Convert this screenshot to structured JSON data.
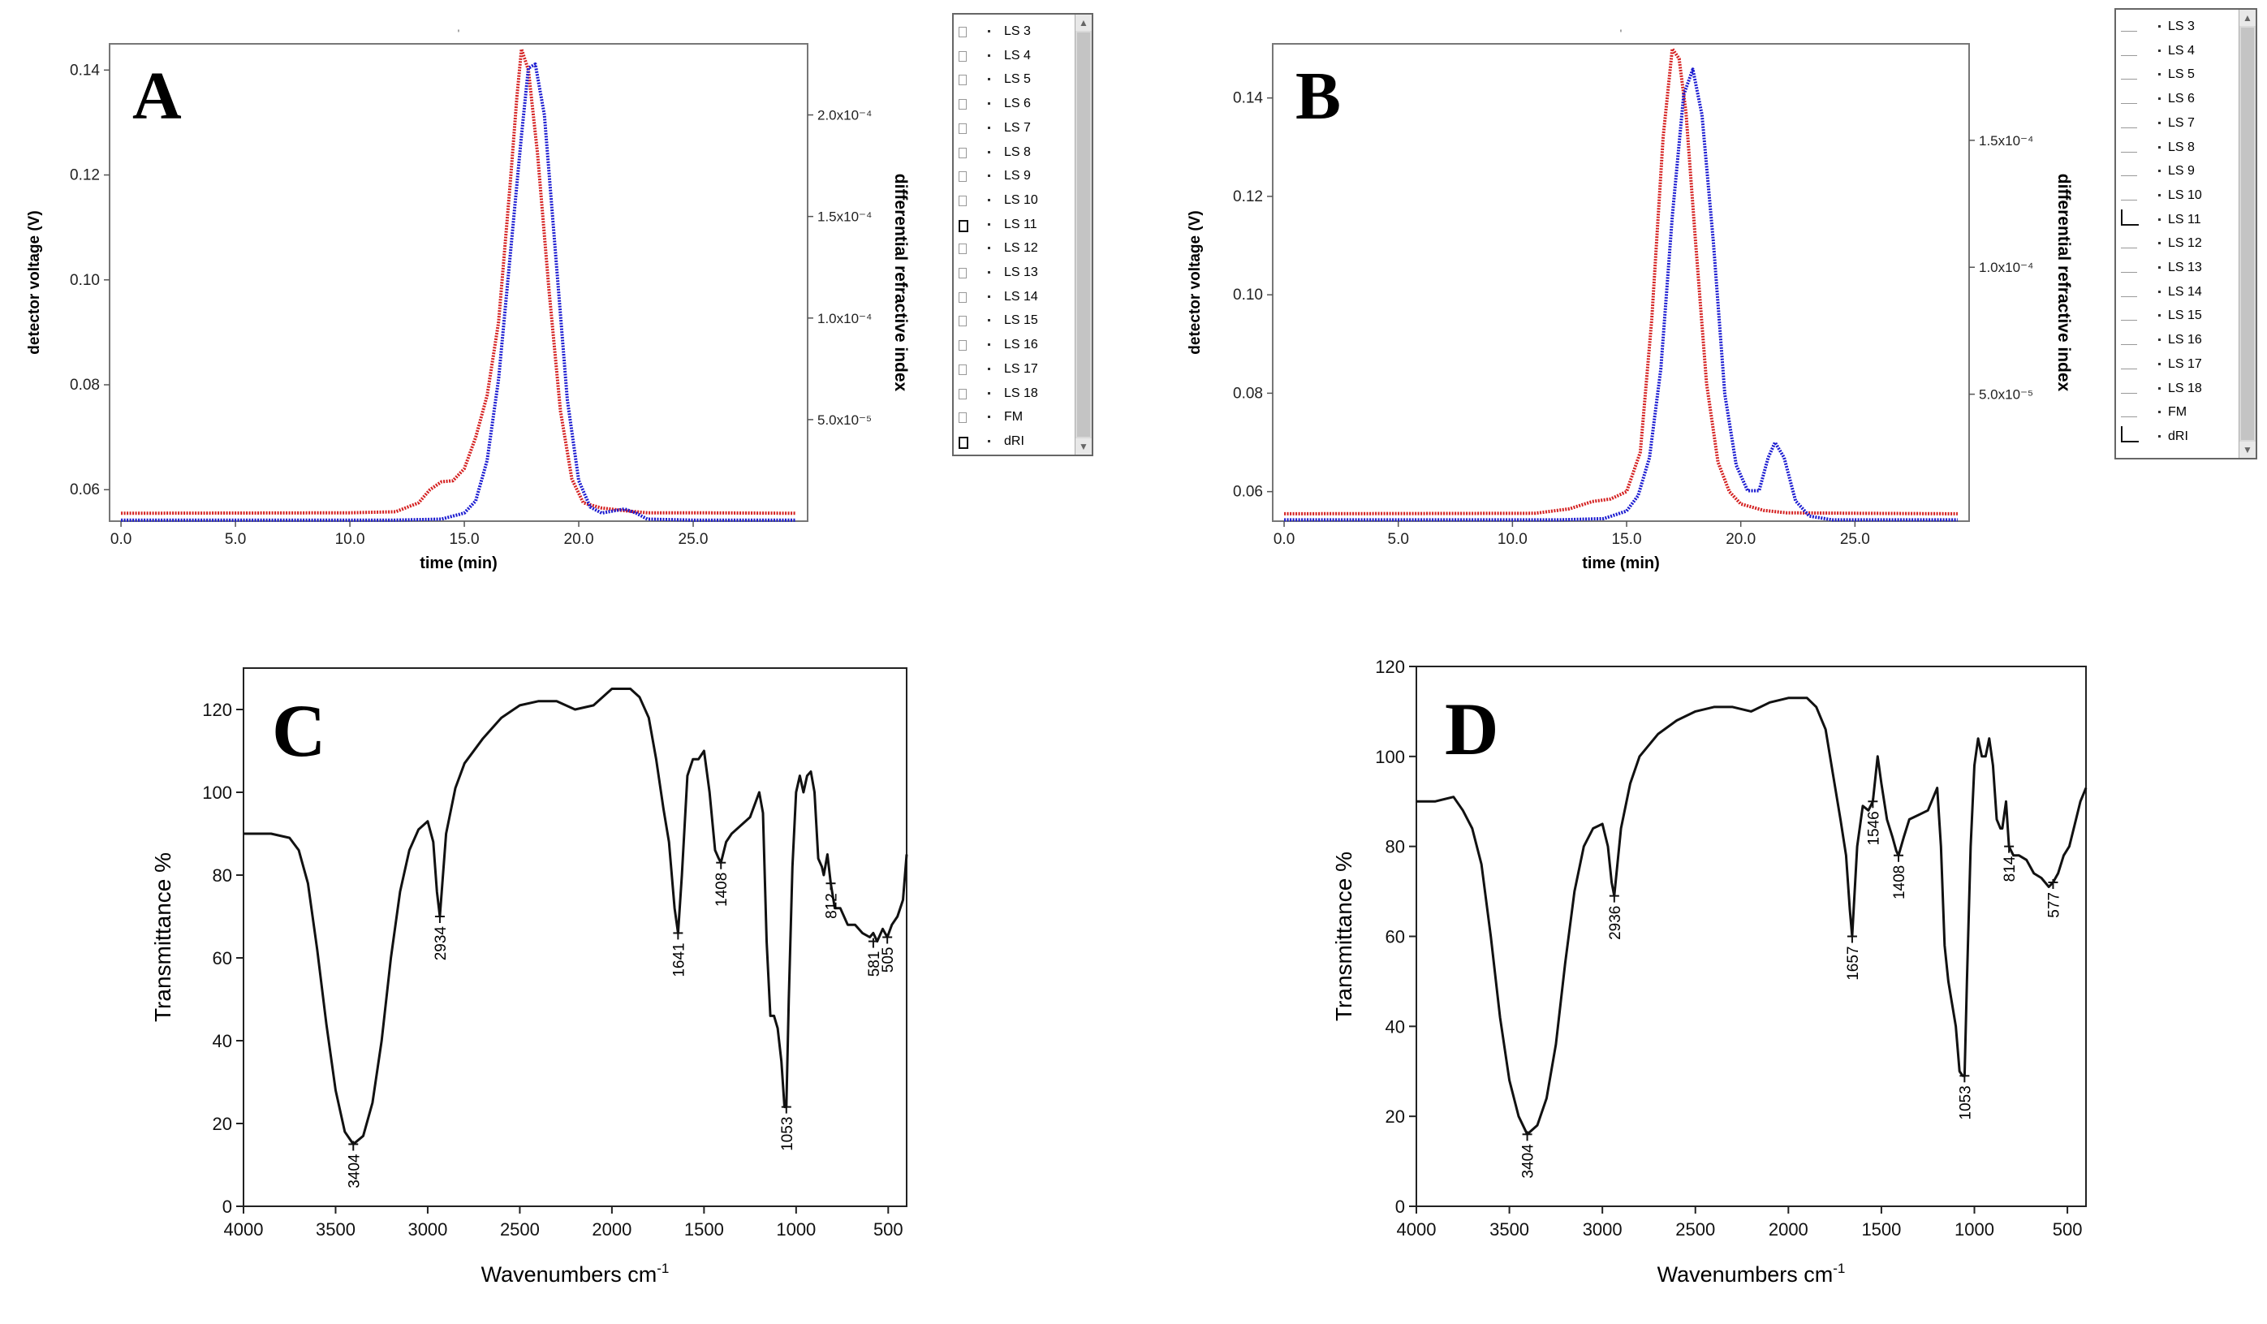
{
  "chart_data": [
    {
      "id": "A",
      "type": "line",
      "panel_letter": "A",
      "title_mark": "'",
      "xlabel": "time (min)",
      "ylabel": "detector voltage (V)",
      "y2label": "differential refractive index",
      "xlim": [
        -0.5,
        30
      ],
      "ylim": [
        0.054,
        0.145
      ],
      "y2lim": [
        0,
        0.000235
      ],
      "x_ticks": [
        "0.0",
        "5.0",
        "10.0",
        "15.0",
        "20.0",
        "25.0"
      ],
      "x_tick_values": [
        0,
        5,
        10,
        15,
        20,
        25
      ],
      "y_ticks": [
        "0.06",
        "0.08",
        "0.10",
        "0.12",
        "0.14"
      ],
      "y_tick_values": [
        0.06,
        0.08,
        0.1,
        0.12,
        0.14
      ],
      "y2_ticks": [
        "5.0x10⁻⁵",
        "1.0x10⁻⁴",
        "1.5x10⁻⁴",
        "2.0x10⁻⁴"
      ],
      "y2_tick_values": [
        5e-05,
        0.0001,
        0.00015,
        0.0002
      ],
      "series": [
        {
          "name": "LS 11",
          "axis": "left",
          "color": "#d42020",
          "x": [
            0,
            10,
            12,
            13,
            13.5,
            14,
            14.5,
            15,
            15.5,
            16,
            16.5,
            17,
            17.3,
            17.5,
            17.8,
            18.2,
            18.7,
            19.2,
            19.7,
            20.2,
            21,
            22,
            23,
            25,
            29.5
          ],
          "y": [
            0.0555,
            0.0556,
            0.0558,
            0.0575,
            0.06,
            0.0615,
            0.0617,
            0.064,
            0.07,
            0.078,
            0.092,
            0.118,
            0.135,
            0.144,
            0.14,
            0.124,
            0.098,
            0.075,
            0.062,
            0.0575,
            0.0565,
            0.056,
            0.0556,
            0.0556,
            0.0555
          ]
        },
        {
          "name": "dRI",
          "axis": "right",
          "color": "#1a1ad0",
          "x": [
            0,
            12,
            14,
            15,
            15.5,
            16,
            16.5,
            17,
            17.5,
            17.8,
            18.1,
            18.5,
            19,
            19.5,
            20,
            20.5,
            21,
            21.5,
            22,
            22.5,
            23,
            25,
            29.5
          ],
          "y": [
            5e-07,
            5e-07,
            1e-06,
            4e-06,
            1e-05,
            3e-05,
            7e-05,
            0.00013,
            0.00019,
            0.000223,
            0.000225,
            0.0002,
            0.00013,
            6e-05,
            2e-05,
            7e-06,
            4e-06,
            5e-06,
            6e-06,
            4e-06,
            1e-06,
            5e-07,
            5e-07
          ]
        }
      ],
      "legend": [
        {
          "label": "LS  3",
          "checked": false
        },
        {
          "label": "LS  4",
          "checked": false
        },
        {
          "label": "LS  5",
          "checked": false
        },
        {
          "label": "LS  6",
          "checked": false
        },
        {
          "label": "LS  7",
          "checked": false
        },
        {
          "label": "LS  8",
          "checked": false
        },
        {
          "label": "LS  9",
          "checked": false
        },
        {
          "label": "LS  10",
          "checked": false
        },
        {
          "label": "LS  11",
          "checked": true
        },
        {
          "label": "LS  12",
          "checked": false
        },
        {
          "label": "LS  13",
          "checked": false
        },
        {
          "label": "LS  14",
          "checked": false
        },
        {
          "label": "LS  15",
          "checked": false
        },
        {
          "label": "LS  16",
          "checked": false
        },
        {
          "label": "LS  17",
          "checked": false
        },
        {
          "label": "LS  18",
          "checked": false
        },
        {
          "label": "FM",
          "checked": false
        },
        {
          "label": "dRI",
          "checked": true
        }
      ]
    },
    {
      "id": "B",
      "type": "line",
      "panel_letter": "B",
      "title_mark": "'",
      "xlabel": "time (min)",
      "ylabel": "detector voltage (V)",
      "y2label": "differential refractive index",
      "xlim": [
        -0.5,
        30
      ],
      "ylim": [
        0.054,
        0.151
      ],
      "y2lim": [
        0,
        0.000188
      ],
      "x_ticks": [
        "0.0",
        "5.0",
        "10.0",
        "15.0",
        "20.0",
        "25.0"
      ],
      "x_tick_values": [
        0,
        5,
        10,
        15,
        20,
        25
      ],
      "y_ticks": [
        "0.06",
        "0.08",
        "0.10",
        "0.12",
        "0.14"
      ],
      "y_tick_values": [
        0.06,
        0.08,
        0.1,
        0.12,
        0.14
      ],
      "y2_ticks": [
        "5.0x10⁻⁵",
        "1.0x10⁻⁴",
        "1.5x10⁻⁴"
      ],
      "y2_tick_values": [
        5e-05,
        0.0001,
        0.00015
      ],
      "series": [
        {
          "name": "LS 11",
          "axis": "left",
          "color": "#d42020",
          "x": [
            0,
            11,
            12.5,
            13.5,
            14.3,
            15,
            15.6,
            16.1,
            16.6,
            17,
            17.3,
            17.6,
            18,
            18.5,
            19,
            19.5,
            20,
            21,
            22,
            25,
            29.5
          ],
          "y": [
            0.0555,
            0.0556,
            0.0565,
            0.058,
            0.0585,
            0.06,
            0.068,
            0.095,
            0.132,
            0.15,
            0.148,
            0.137,
            0.112,
            0.082,
            0.066,
            0.06,
            0.0575,
            0.0562,
            0.0557,
            0.0556,
            0.0555
          ]
        },
        {
          "name": "dRI",
          "axis": "right",
          "color": "#1a1ad0",
          "x": [
            0,
            12,
            14,
            15,
            15.5,
            16,
            16.5,
            17,
            17.5,
            17.9,
            18.3,
            18.8,
            19.3,
            19.8,
            20.3,
            20.8,
            21.2,
            21.5,
            21.9,
            22.4,
            23,
            24,
            29.5
          ],
          "y": [
            5e-07,
            5e-07,
            1e-06,
            4e-06,
            1e-05,
            2.5e-05,
            6e-05,
            0.00012,
            0.000168,
            0.000178,
            0.00016,
            0.00011,
            5e-05,
            2.2e-05,
            1.2e-05,
            1.2e-05,
            2.5e-05,
            3.1e-05,
            2.5e-05,
            8e-06,
            2e-06,
            5e-07,
            5e-07
          ]
        }
      ],
      "legend": [
        {
          "label": "LS  3",
          "checked": false
        },
        {
          "label": "LS  4",
          "checked": false
        },
        {
          "label": "LS  5",
          "checked": false
        },
        {
          "label": "LS  6",
          "checked": false
        },
        {
          "label": "LS  7",
          "checked": false
        },
        {
          "label": "LS  8",
          "checked": false
        },
        {
          "label": "LS  9",
          "checked": false
        },
        {
          "label": "LS  10",
          "checked": false
        },
        {
          "label": "LS  11",
          "checked": true
        },
        {
          "label": "LS  12",
          "checked": false
        },
        {
          "label": "LS  13",
          "checked": false
        },
        {
          "label": "LS  14",
          "checked": false
        },
        {
          "label": "LS  15",
          "checked": false
        },
        {
          "label": "LS  16",
          "checked": false
        },
        {
          "label": "LS  17",
          "checked": false
        },
        {
          "label": "LS  18",
          "checked": false
        },
        {
          "label": "FM",
          "checked": false
        },
        {
          "label": "dRI",
          "checked": true
        }
      ]
    },
    {
      "id": "C",
      "type": "line",
      "panel_letter": "C",
      "xlabel": "Wavenumbers  cm",
      "xlabel_sup": "-1",
      "ylabel": "Transmittance %",
      "xlim": [
        4000,
        400
      ],
      "ylim": [
        0,
        130
      ],
      "x_ticks": [
        "4000",
        "3500",
        "3000",
        "2500",
        "2000",
        "1500",
        "1000",
        "500"
      ],
      "x_tick_values": [
        4000,
        3500,
        3000,
        2500,
        2000,
        1500,
        1000,
        500
      ],
      "y_ticks": [
        "0",
        "20",
        "40",
        "60",
        "80",
        "100",
        "120"
      ],
      "y_tick_values": [
        0,
        20,
        40,
        60,
        80,
        100,
        120
      ],
      "series": [
        {
          "name": "spectrum",
          "color": "#111111",
          "x": [
            4000,
            3850,
            3750,
            3700,
            3650,
            3600,
            3550,
            3500,
            3450,
            3404,
            3350,
            3300,
            3250,
            3200,
            3150,
            3100,
            3050,
            3000,
            2970,
            2950,
            2934,
            2900,
            2850,
            2800,
            2700,
            2600,
            2500,
            2400,
            2300,
            2200,
            2100,
            2000,
            1900,
            1850,
            1800,
            1760,
            1720,
            1690,
            1660,
            1641,
            1620,
            1590,
            1560,
            1530,
            1500,
            1470,
            1440,
            1420,
            1408,
            1380,
            1350,
            1300,
            1250,
            1200,
            1180,
            1160,
            1140,
            1120,
            1100,
            1080,
            1063,
            1053,
            1040,
            1020,
            1000,
            980,
            960,
            940,
            920,
            900,
            880,
            860,
            850,
            830,
            812,
            790,
            760,
            720,
            680,
            640,
            600,
            581,
            560,
            530,
            505,
            480,
            450,
            420,
            400
          ],
          "y": [
            90,
            90,
            89,
            86,
            78,
            62,
            44,
            28,
            18,
            15,
            17,
            25,
            40,
            60,
            76,
            86,
            91,
            93,
            88,
            76,
            70,
            90,
            101,
            107,
            113,
            118,
            121,
            122,
            122,
            120,
            121,
            125,
            125,
            123,
            118,
            108,
            96,
            88,
            72,
            66,
            80,
            104,
            108,
            108,
            110,
            100,
            86,
            84,
            83,
            88,
            90,
            92,
            94,
            100,
            95,
            64,
            46,
            46,
            43,
            35,
            24,
            24,
            50,
            82,
            100,
            104,
            100,
            104,
            105,
            100,
            84,
            82,
            80,
            85,
            78,
            72,
            72,
            68,
            68,
            66,
            65,
            66,
            64,
            67,
            65,
            68,
            70,
            74,
            85
          ]
        }
      ],
      "annotations": [
        {
          "label": "3404",
          "x": 3404,
          "y": 15,
          "placement": "below"
        },
        {
          "label": "2934",
          "x": 2934,
          "y": 70,
          "placement": "below"
        },
        {
          "label": "1641",
          "x": 1641,
          "y": 66,
          "placement": "below"
        },
        {
          "label": "1408",
          "x": 1408,
          "y": 83,
          "placement": "below"
        },
        {
          "label": "1053",
          "x": 1053,
          "y": 24,
          "placement": "below"
        },
        {
          "label": "812",
          "x": 812,
          "y": 78,
          "placement": "below"
        },
        {
          "label": "581",
          "x": 581,
          "y": 64,
          "placement": "below"
        },
        {
          "label": "505",
          "x": 505,
          "y": 65,
          "placement": "below"
        }
      ]
    },
    {
      "id": "D",
      "type": "line",
      "panel_letter": "D",
      "xlabel": "Wavenumbers  cm",
      "xlabel_sup": "-1",
      "ylabel": "Transmittance %",
      "xlim": [
        4000,
        400
      ],
      "ylim": [
        0,
        120
      ],
      "x_ticks": [
        "4000",
        "3500",
        "3000",
        "2500",
        "2000",
        "1500",
        "1000",
        "500"
      ],
      "x_tick_values": [
        4000,
        3500,
        3000,
        2500,
        2000,
        1500,
        1000,
        500
      ],
      "y_ticks": [
        "0",
        "20",
        "40",
        "60",
        "80",
        "100",
        "120"
      ],
      "y_tick_values": [
        0,
        20,
        40,
        60,
        80,
        100,
        120
      ],
      "series": [
        {
          "name": "spectrum",
          "color": "#111111",
          "x": [
            4000,
            3900,
            3800,
            3750,
            3700,
            3650,
            3600,
            3550,
            3500,
            3450,
            3404,
            3350,
            3300,
            3250,
            3200,
            3150,
            3100,
            3050,
            3000,
            2970,
            2950,
            2936,
            2900,
            2850,
            2800,
            2700,
            2600,
            2500,
            2400,
            2300,
            2200,
            2100,
            2000,
            1900,
            1850,
            1800,
            1760,
            1720,
            1690,
            1670,
            1657,
            1630,
            1600,
            1570,
            1546,
            1520,
            1500,
            1470,
            1440,
            1420,
            1408,
            1380,
            1350,
            1300,
            1250,
            1200,
            1180,
            1160,
            1140,
            1120,
            1100,
            1080,
            1063,
            1053,
            1040,
            1020,
            1000,
            980,
            960,
            940,
            920,
            900,
            880,
            860,
            850,
            830,
            814,
            790,
            760,
            720,
            680,
            640,
            600,
            577,
            550,
            520,
            490,
            460,
            430,
            400
          ],
          "y": [
            90,
            90,
            91,
            88,
            84,
            76,
            60,
            42,
            28,
            20,
            16,
            18,
            24,
            36,
            54,
            70,
            80,
            84,
            85,
            80,
            72,
            69,
            84,
            94,
            100,
            105,
            108,
            110,
            111,
            111,
            110,
            112,
            113,
            113,
            111,
            106,
            96,
            86,
            78,
            66,
            60,
            80,
            89,
            88,
            90,
            100,
            94,
            86,
            82,
            79,
            78,
            82,
            86,
            87,
            88,
            93,
            80,
            58,
            50,
            45,
            40,
            30,
            29,
            29,
            50,
            80,
            98,
            104,
            100,
            100,
            104,
            98,
            86,
            84,
            84,
            90,
            80,
            78,
            78,
            77,
            74,
            73,
            71,
            72,
            74,
            78,
            80,
            85,
            90,
            93
          ]
        }
      ],
      "annotations": [
        {
          "label": "3404",
          "x": 3404,
          "y": 16,
          "placement": "below"
        },
        {
          "label": "2936",
          "x": 2936,
          "y": 69,
          "placement": "below"
        },
        {
          "label": "1657",
          "x": 1657,
          "y": 60,
          "placement": "below"
        },
        {
          "label": "1546",
          "x": 1546,
          "y": 90,
          "placement": "below"
        },
        {
          "label": "1408",
          "x": 1408,
          "y": 78,
          "placement": "below"
        },
        {
          "label": "1053",
          "x": 1053,
          "y": 29,
          "placement": "below"
        },
        {
          "label": "814",
          "x": 814,
          "y": 80,
          "placement": "below"
        },
        {
          "label": "577",
          "x": 577,
          "y": 72,
          "placement": "below"
        }
      ]
    }
  ]
}
